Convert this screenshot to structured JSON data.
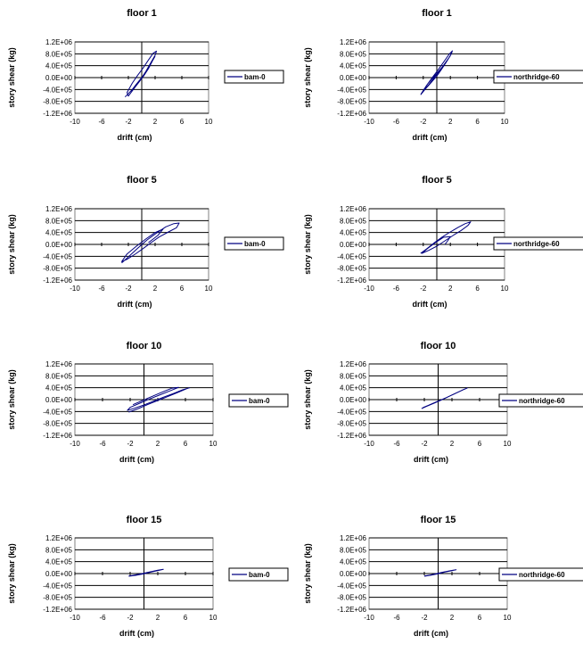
{
  "series_color": "#000080",
  "chart_data": [
    {
      "type": "line",
      "title": "floor 1",
      "xlabel": "drift (cm)",
      "ylabel": "story shear (kg)",
      "xlim": [
        -10,
        10
      ],
      "ylim": [
        -1200000,
        1200000
      ],
      "xticks": [
        "-10",
        "-6",
        "-2",
        "2",
        "6",
        "10"
      ],
      "yticks": [
        "1.2E+06",
        "8.0E+05",
        "4.0E+05",
        "0.0E+00",
        "-4.0E+05",
        "-8.0E+05",
        "-1.2E+06"
      ],
      "legend": "bam-0",
      "series": [
        {
          "name": "bam-0",
          "x": [
            -2.5,
            -1.5,
            -0.8,
            0,
            0.6,
            1.3,
            2.0,
            2.2,
            1.7,
            0.9,
            0.2,
            -0.6,
            -1.4,
            -2.2,
            -2.0,
            -1.2,
            -0.4,
            0.3,
            1.0,
            1.6,
            2.0
          ],
          "y": [
            -650000,
            -420000,
            -220000,
            0,
            200000,
            480000,
            750000,
            890000,
            820000,
            560000,
            320000,
            80000,
            -180000,
            -500000,
            -620000,
            -380000,
            -150000,
            60000,
            300000,
            560000,
            720000
          ]
        }
      ]
    },
    {
      "type": "line",
      "title": "floor 1",
      "xlabel": "drift (cm)",
      "ylabel": "story shear (kg)",
      "xlim": [
        -10,
        10
      ],
      "ylim": [
        -1200000,
        1200000
      ],
      "xticks": [
        "-10",
        "-6",
        "-2",
        "2",
        "6",
        "10"
      ],
      "yticks": [
        "1.2E+06",
        "8.0E+05",
        "4.0E+05",
        "0.0E+00",
        "-4.0E+05",
        "-8.0E+05",
        "-1.2E+06"
      ],
      "legend": "northridge-60",
      "series": [
        {
          "name": "northridge-60",
          "x": [
            -2.4,
            -1.6,
            -0.8,
            0,
            0.7,
            1.4,
            2.1,
            2.3,
            1.8,
            1.0,
            0.2,
            -0.6,
            -1.5,
            -2.3,
            -2.1,
            -1.2,
            -0.3,
            0.5,
            1.2,
            1.9,
            2.2,
            1.5,
            0.6,
            -0.4,
            -1.3
          ],
          "y": [
            -580000,
            -360000,
            -160000,
            50000,
            280000,
            520000,
            780000,
            900000,
            780000,
            520000,
            260000,
            20000,
            -260000,
            -540000,
            -480000,
            -240000,
            20000,
            260000,
            480000,
            700000,
            820000,
            560000,
            300000,
            40000,
            -200000
          ]
        }
      ]
    },
    {
      "type": "line",
      "title": "floor 5",
      "xlabel": "drift (cm)",
      "ylabel": "story shear (kg)",
      "xlim": [
        -10,
        10
      ],
      "ylim": [
        -1200000,
        1200000
      ],
      "xticks": [
        "-10",
        "-6",
        "-2",
        "2",
        "6",
        "10"
      ],
      "yticks": [
        "1.2E+06",
        "8.0E+05",
        "4.0E+05",
        "0.0E+00",
        "-4.0E+05",
        "-8.0E+05",
        "-1.2E+06"
      ],
      "legend": "bam-0",
      "series": [
        {
          "name": "bam-0",
          "x": [
            -3.0,
            -2.0,
            -0.6,
            0.8,
            2.2,
            3.6,
            4.8,
            5.6,
            5.2,
            4.0,
            2.6,
            1.4,
            0.2,
            -1.0,
            -2.2,
            -3.0,
            -2.2,
            -0.8,
            0.6,
            2.0,
            3.2,
            2.4,
            1.0
          ],
          "y": [
            -620000,
            -420000,
            -130000,
            150000,
            380000,
            590000,
            700000,
            720000,
            560000,
            420000,
            250000,
            60000,
            -140000,
            -330000,
            -500000,
            -580000,
            -320000,
            -60000,
            180000,
            400000,
            520000,
            300000,
            60000
          ]
        }
      ]
    },
    {
      "type": "line",
      "title": "floor 5",
      "xlabel": "drift (cm)",
      "ylabel": "story shear (kg)",
      "xlim": [
        -10,
        10
      ],
      "ylim": [
        -1200000,
        1200000
      ],
      "xticks": [
        "-10",
        "-6",
        "-2",
        "2",
        "6",
        "10"
      ],
      "yticks": [
        "1.2E+06",
        "8.0E+05",
        "4.0E+05",
        "0.0E+00",
        "-4.0E+05",
        "-8.0E+05",
        "-1.2E+06"
      ],
      "legend": "northridge-60",
      "series": [
        {
          "name": "northridge-60",
          "x": [
            -2.4,
            -1.5,
            -0.4,
            0.8,
            2.0,
            3.2,
            4.2,
            5.0,
            4.6,
            3.6,
            2.4,
            1.2,
            0.0,
            -1.2,
            -2.2,
            -1.4,
            -0.2,
            1.0,
            2.0,
            1.6,
            1.2
          ],
          "y": [
            -300000,
            -150000,
            50000,
            250000,
            420000,
            580000,
            700000,
            760000,
            640000,
            470000,
            300000,
            120000,
            -60000,
            -200000,
            -300000,
            -140000,
            60000,
            240000,
            260000,
            120000,
            0
          ]
        }
      ]
    },
    {
      "type": "line",
      "title": "floor 10",
      "xlabel": "drift (cm)",
      "ylabel": "story shear (kg)",
      "xlim": [
        -10,
        10
      ],
      "ylim": [
        -1200000,
        1200000
      ],
      "xticks": [
        "-10",
        "-6",
        "-2",
        "2",
        "6",
        "10"
      ],
      "yticks": [
        "1.2E+06",
        "8.0E+05",
        "4.0E+05",
        "0.0E+00",
        "-4.0E+05",
        "-8.0E+05",
        "-1.2E+06"
      ],
      "legend": "bam-0",
      "series": [
        {
          "name": "bam-0",
          "x": [
            -2.2,
            -0.8,
            0.6,
            2.0,
            3.4,
            4.8,
            6.2,
            6.6,
            5.6,
            4.2,
            2.8,
            1.4,
            0.0,
            -1.4,
            -2.4,
            -2.0,
            -0.6,
            0.8,
            2.2,
            3.6,
            5.0,
            4.0,
            2.6,
            1.2,
            -0.2,
            -1.6
          ],
          "y": [
            -420000,
            -300000,
            -160000,
            -30000,
            100000,
            230000,
            370000,
            400000,
            330000,
            200000,
            80000,
            -50000,
            -180000,
            -290000,
            -360000,
            -260000,
            -120000,
            20000,
            150000,
            280000,
            410000,
            380000,
            250000,
            110000,
            -30000,
            -170000
          ]
        }
      ]
    },
    {
      "type": "line",
      "title": "floor 10",
      "xlabel": "drift (cm)",
      "ylabel": "story shear (kg)",
      "xlim": [
        -10,
        10
      ],
      "ylim": [
        -1200000,
        1200000
      ],
      "xticks": [
        "-10",
        "-6",
        "-2",
        "2",
        "6",
        "10"
      ],
      "yticks": [
        "1.2E+06",
        "8.0E+05",
        "4.0E+05",
        "0.0E+00",
        "-4.0E+05",
        "-8.0E+05",
        "-1.2E+06"
      ],
      "legend": "northridge-60",
      "series": [
        {
          "name": "northridge-60",
          "x": [
            -2.4,
            -1.6,
            -0.6,
            0.4,
            1.4,
            2.4,
            3.4,
            4.2,
            3.6,
            2.6,
            1.6,
            0.6,
            -0.4,
            -1.4,
            -2.2
          ],
          "y": [
            -300000,
            -220000,
            -120000,
            -20000,
            90000,
            200000,
            310000,
            390000,
            330000,
            220000,
            110000,
            10000,
            -90000,
            -190000,
            -270000
          ]
        }
      ]
    },
    {
      "type": "line",
      "title": "floor 15",
      "xlabel": "drift (cm)",
      "ylabel": "story shear (kg)",
      "xlim": [
        -10,
        10
      ],
      "ylim": [
        -1200000,
        1200000
      ],
      "xticks": [
        "-10",
        "-6",
        "-2",
        "2",
        "6",
        "10"
      ],
      "yticks": [
        "1.2E+06",
        "8.0E+05",
        "4.0E+05",
        "0.0E+00",
        "-4.0E+05",
        "-8.0E+05",
        "-1.2E+06"
      ],
      "legend": "bam-0",
      "series": [
        {
          "name": "bam-0",
          "x": [
            -2.2,
            -1.2,
            0.0,
            1.2,
            2.4,
            2.8,
            2.0,
            0.8,
            -0.4,
            -1.6,
            -2.2
          ],
          "y": [
            -90000,
            -60000,
            -10000,
            60000,
            120000,
            140000,
            110000,
            50000,
            -10000,
            -60000,
            -80000
          ]
        }
      ]
    },
    {
      "type": "line",
      "title": "floor 15",
      "xlabel": "drift (cm)",
      "ylabel": "story shear (kg)",
      "xlim": [
        -10,
        10
      ],
      "ylim": [
        -1200000,
        1200000
      ],
      "xticks": [
        "-10",
        "-6",
        "-2",
        "2",
        "6",
        "10"
      ],
      "yticks": [
        "1.2E+06",
        "8.0E+05",
        "4.0E+05",
        "0.0E+00",
        "-4.0E+05",
        "-8.0E+05",
        "-1.2E+06"
      ],
      "legend": "northridge-60",
      "series": [
        {
          "name": "northridge-60",
          "x": [
            -2.0,
            -1.0,
            0.0,
            1.0,
            2.0,
            2.6,
            1.8,
            0.8,
            -0.2,
            -1.2,
            -2.0
          ],
          "y": [
            -90000,
            -50000,
            -10000,
            50000,
            100000,
            130000,
            100000,
            50000,
            0,
            -50000,
            -80000
          ]
        }
      ]
    }
  ]
}
